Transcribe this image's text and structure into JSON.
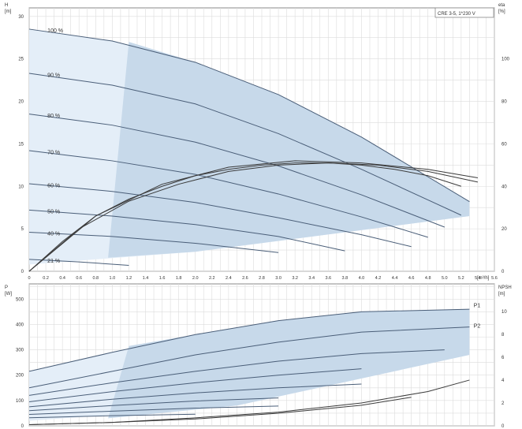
{
  "chart_data": [
    {
      "type": "line",
      "title": "",
      "model_label": "CRE 3-5, 1*230 V",
      "xlabel": "Q",
      "x_unit": "[m³/h]",
      "ylabel": "H",
      "y_unit": "[m]",
      "ylabel_right": "eta",
      "y_unit_right": "[%]",
      "xlim": [
        0,
        5.6
      ],
      "ylim": [
        0,
        31
      ],
      "ylim_right": [
        0,
        124
      ],
      "x_ticks": [
        "0",
        "0.2",
        "0.4",
        "0.6",
        "0.8",
        "1.0",
        "1.2",
        "1.4",
        "1.6",
        "1.8",
        "2.0",
        "2.2",
        "2.4",
        "2.6",
        "2.8",
        "3.0",
        "3.2",
        "3.4",
        "3.6",
        "3.8",
        "4.0",
        "4.2",
        "4.4",
        "4.6",
        "4.8",
        "5.0",
        "5.2",
        "5.4",
        "5.6"
      ],
      "y_ticks": [
        "0",
        "5",
        "10",
        "15",
        "20",
        "25",
        "30"
      ],
      "y_ticks_right": [
        "0",
        "20",
        "40",
        "60",
        "80",
        "100"
      ],
      "grid": true,
      "series": [
        {
          "name": "100 %",
          "x": [
            0,
            1.0,
            2.0,
            3.0,
            4.0,
            5.3
          ],
          "y": [
            28.5,
            27.1,
            24.6,
            20.8,
            15.8,
            8.2
          ]
        },
        {
          "name": "90 %",
          "x": [
            0,
            1.0,
            2.0,
            3.0,
            4.0,
            5.2
          ],
          "y": [
            23.3,
            21.9,
            19.7,
            16.2,
            12.0,
            6.6
          ]
        },
        {
          "name": "80 %",
          "x": [
            0,
            1.0,
            2.0,
            3.0,
            4.0,
            5.0
          ],
          "y": [
            18.5,
            17.2,
            15.2,
            12.4,
            9.0,
            5.2
          ]
        },
        {
          "name": "70 %",
          "x": [
            0,
            1.0,
            2.0,
            3.0,
            4.0,
            4.8
          ],
          "y": [
            14.2,
            13.0,
            11.4,
            9.1,
            6.4,
            4.0
          ]
        },
        {
          "name": "60 %",
          "x": [
            0,
            1.0,
            2.0,
            3.0,
            4.0,
            4.6
          ],
          "y": [
            10.3,
            9.4,
            8.1,
            6.3,
            4.3,
            2.9
          ]
        },
        {
          "name": "50 %",
          "x": [
            0,
            1.0,
            2.0,
            3.0,
            3.8
          ],
          "y": [
            7.2,
            6.5,
            5.5,
            4.1,
            2.4
          ]
        },
        {
          "name": "40 %",
          "x": [
            0,
            1.0,
            2.0,
            3.0
          ],
          "y": [
            4.6,
            4.1,
            3.3,
            2.2
          ]
        },
        {
          "name": "21 %",
          "x": [
            0,
            0.6,
            1.2
          ],
          "y": [
            1.4,
            1.1,
            0.7
          ]
        }
      ],
      "efficiency_curves": [
        {
          "x": [
            0,
            0.4,
            0.8,
            1.2,
            1.6,
            2.0,
            2.4,
            2.8,
            3.2,
            3.6,
            4.0,
            4.4,
            4.8,
            5.2
          ],
          "y": [
            0,
            14,
            26,
            34,
            40,
            45,
            48,
            50,
            51,
            51,
            50,
            48,
            45,
            40
          ]
        },
        {
          "x": [
            0,
            0.6,
            1.2,
            1.8,
            2.4,
            3.0,
            3.6,
            4.2,
            4.8,
            5.4
          ],
          "y": [
            0,
            20,
            33,
            41,
            47,
            50,
            51,
            50,
            47,
            42
          ]
        },
        {
          "x": [
            0,
            0.8,
            1.6,
            2.4,
            3.2,
            4.0,
            4.8,
            5.4
          ],
          "y": [
            0,
            26,
            41,
            49,
            52,
            51,
            48,
            44
          ]
        }
      ]
    },
    {
      "type": "line",
      "title": "",
      "xlabel": "",
      "ylabel": "P",
      "y_unit": "[W]",
      "ylabel_right": "NPSH",
      "y_unit_right": "[m]",
      "xlim": [
        0,
        5.6
      ],
      "ylim": [
        0,
        560
      ],
      "ylim_right": [
        0,
        12.4
      ],
      "y_ticks": [
        "0",
        "100",
        "200",
        "300",
        "400",
        "500"
      ],
      "y_ticks_right": [
        "0",
        "2",
        "4",
        "6",
        "8",
        "10"
      ],
      "grid": true,
      "series": [
        {
          "name": "P1",
          "x": [
            0,
            1.0,
            2.0,
            3.0,
            4.0,
            5.3
          ],
          "y": [
            215,
            290,
            360,
            415,
            450,
            460
          ]
        },
        {
          "name": "P2",
          "x": [
            0,
            1.0,
            2.0,
            3.0,
            4.0,
            5.3
          ],
          "y": [
            150,
            215,
            280,
            330,
            370,
            390
          ]
        },
        {
          "x": [
            0,
            1.0,
            2.0,
            3.0,
            4.0,
            5.0
          ],
          "y": [
            120,
            170,
            215,
            255,
            285,
            300
          ]
        },
        {
          "x": [
            0,
            1.0,
            2.0,
            3.0,
            4.0
          ],
          "y": [
            95,
            135,
            170,
            200,
            225
          ]
        },
        {
          "x": [
            0,
            1.0,
            2.0,
            3.0,
            4.0
          ],
          "y": [
            75,
            105,
            130,
            150,
            165
          ]
        },
        {
          "x": [
            0,
            1.0,
            2.0,
            3.0
          ],
          "y": [
            60,
            80,
            98,
            110
          ]
        },
        {
          "x": [
            0,
            1.0,
            2.0,
            3.0
          ],
          "y": [
            45,
            58,
            70,
            78
          ]
        },
        {
          "x": [
            0,
            1.0,
            2.0
          ],
          "y": [
            32,
            40,
            46
          ]
        }
      ],
      "npsh_curves": [
        {
          "x": [
            0,
            1.0,
            2.0,
            3.0,
            4.0,
            4.8,
            5.3
          ],
          "y": [
            0.1,
            0.3,
            0.7,
            1.2,
            2.0,
            3.0,
            4.0
          ]
        },
        {
          "x": [
            0,
            1.0,
            2.0,
            3.0,
            4.0,
            4.6
          ],
          "y": [
            0.1,
            0.3,
            0.6,
            1.1,
            1.8,
            2.5
          ]
        }
      ],
      "labels": [
        "P1",
        "P2"
      ]
    }
  ]
}
